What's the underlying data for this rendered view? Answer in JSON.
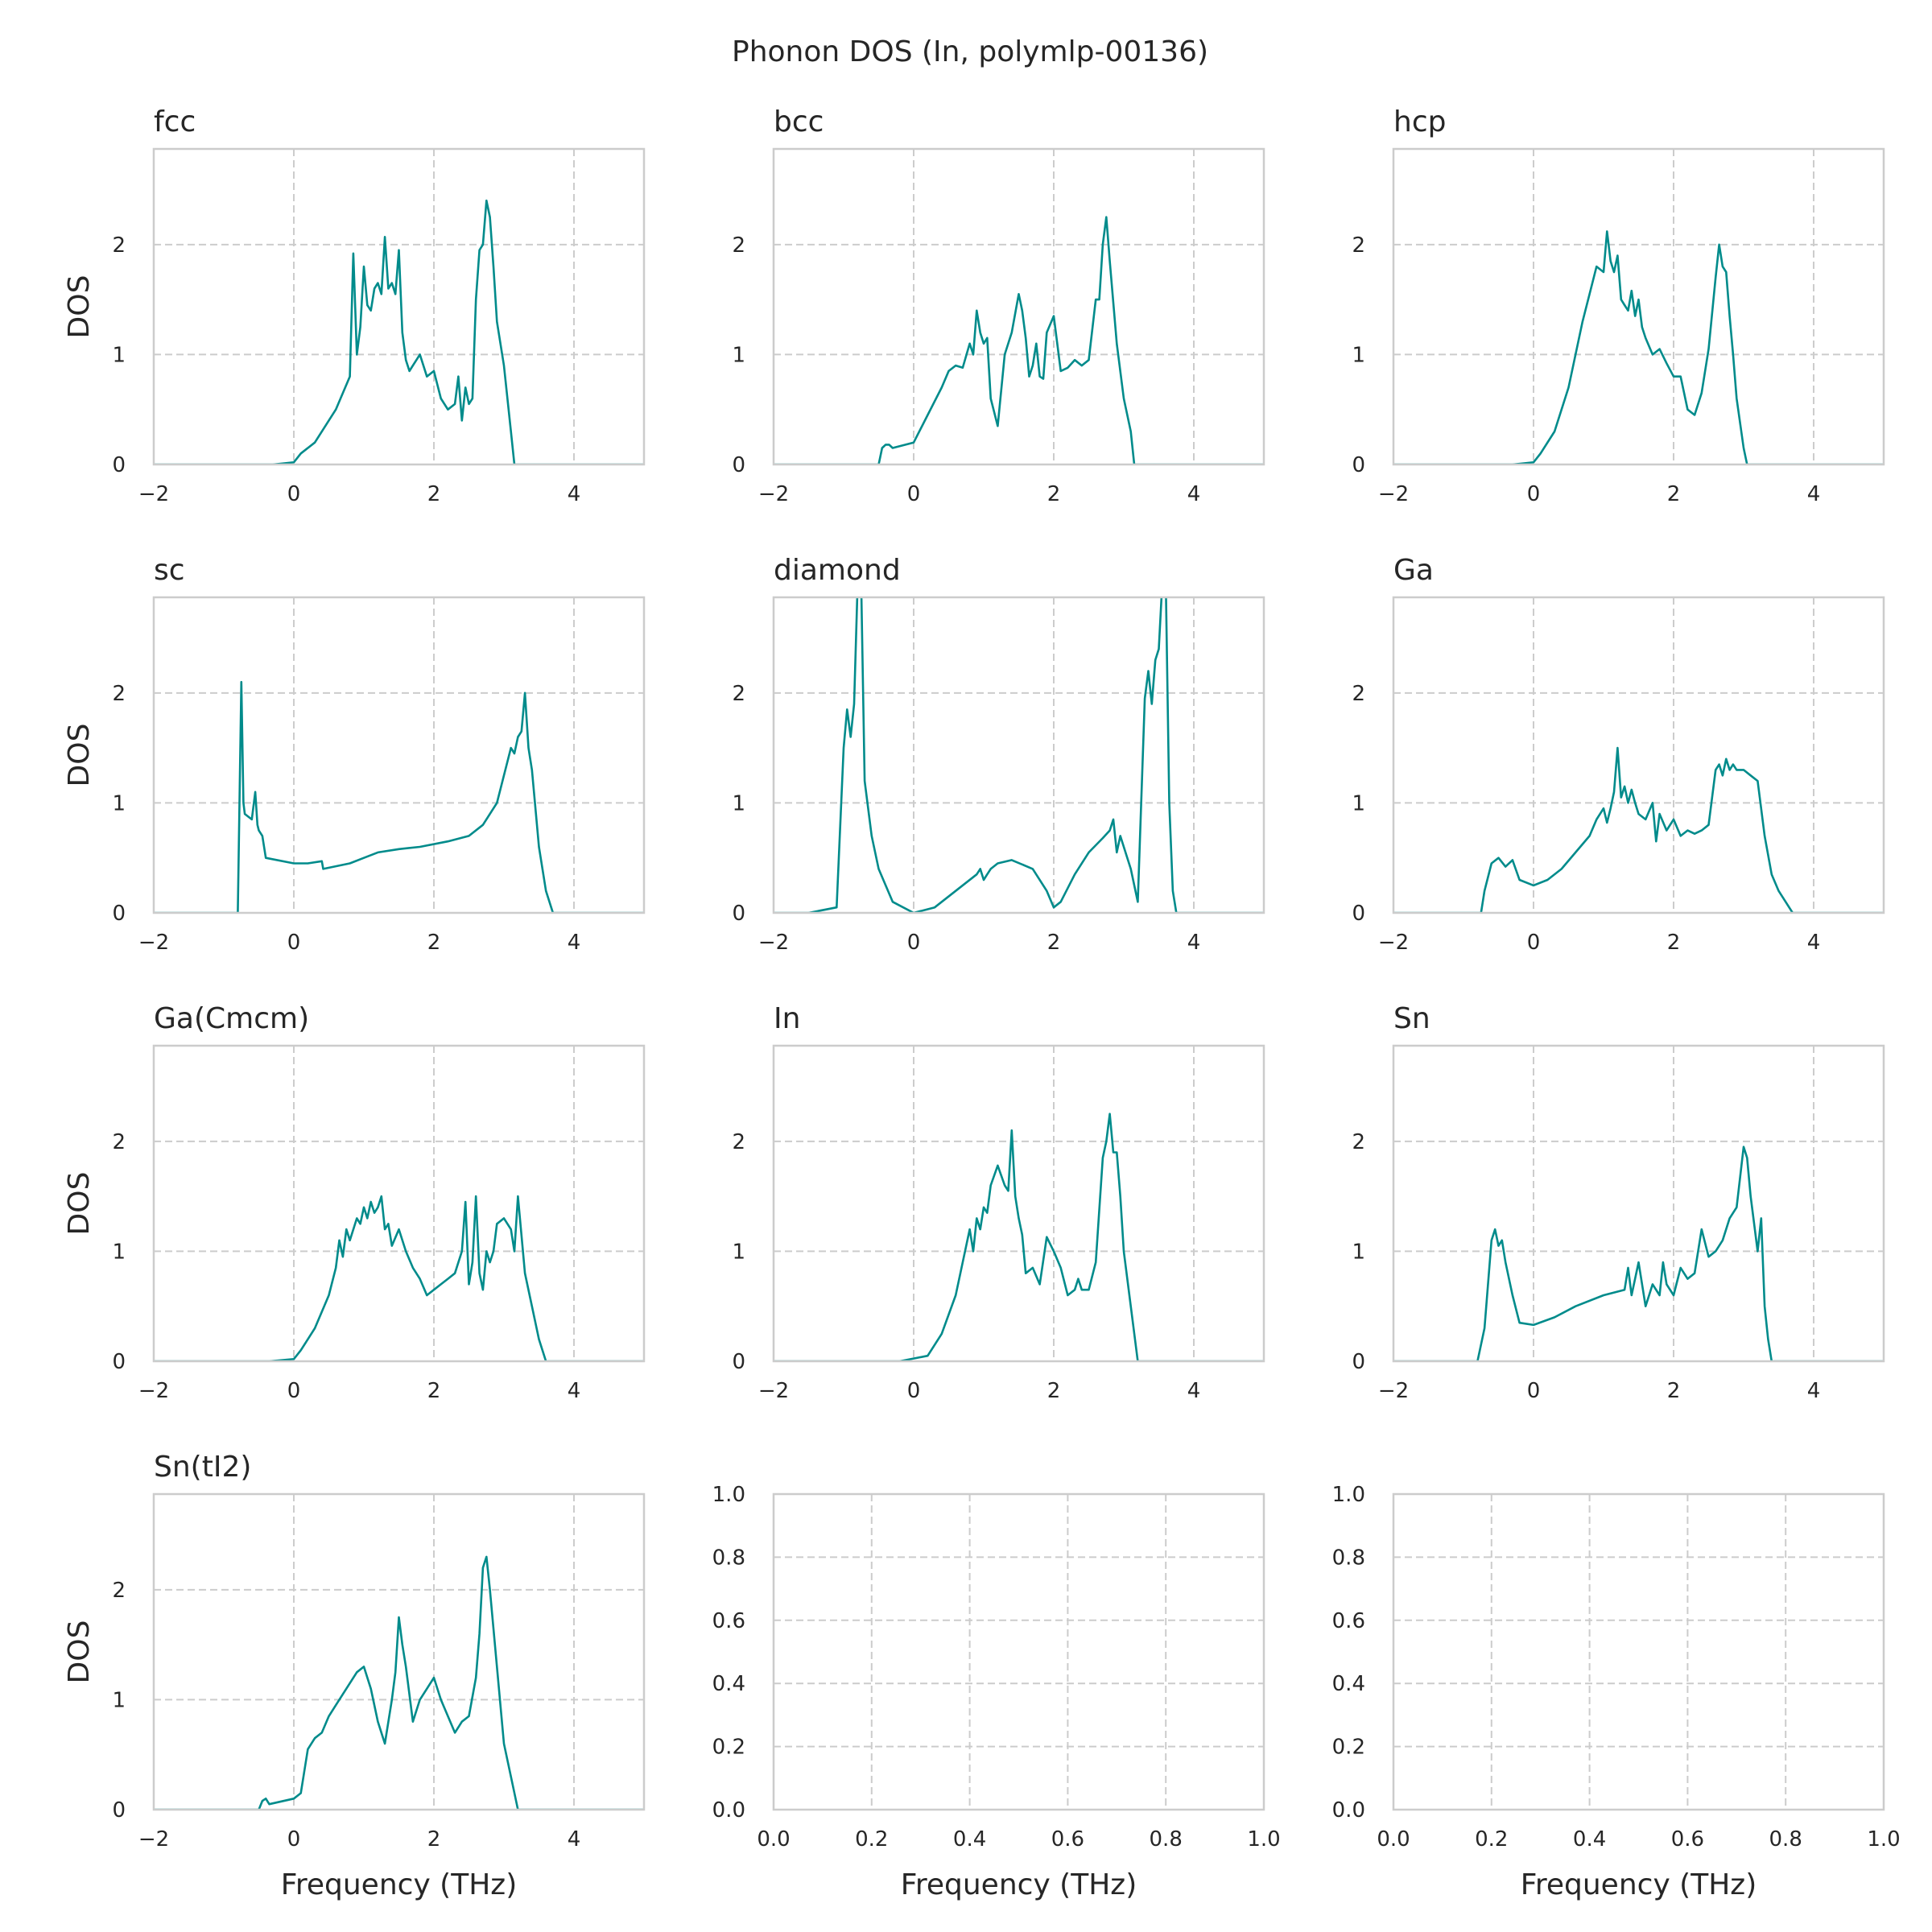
{
  "figure": {
    "suptitle": "Phonon DOS (In, polymlp-00136)",
    "ylabel": "DOS",
    "xlabel": "Frequency (THz)",
    "line_color": "#008b8b",
    "grid_color": "#cccccc"
  },
  "chart_data": [
    {
      "type": "line",
      "title": "fcc",
      "xlabel": "",
      "ylabel": "DOS",
      "xlim": [
        -2,
        5
      ],
      "ylim": [
        0,
        2.87
      ],
      "xticks": [
        "−2",
        "0",
        "2",
        "4"
      ],
      "yticks": [
        "0",
        "1",
        "2"
      ],
      "grid": true,
      "x": [
        -2,
        -0.3,
        0,
        0.1,
        0.3,
        0.6,
        0.8,
        0.85,
        0.9,
        0.95,
        1.0,
        1.05,
        1.1,
        1.15,
        1.2,
        1.25,
        1.3,
        1.35,
        1.4,
        1.45,
        1.5,
        1.55,
        1.6,
        1.65,
        1.7,
        1.8,
        1.9,
        2.0,
        2.1,
        2.2,
        2.3,
        2.35,
        2.4,
        2.45,
        2.5,
        2.55,
        2.6,
        2.65,
        2.7,
        2.75,
        2.8,
        2.85,
        2.9,
        3.0,
        3.1,
        3.15,
        3.2,
        3.5,
        5
      ],
      "y": [
        0,
        0,
        0.02,
        0.1,
        0.2,
        0.5,
        0.8,
        1.92,
        1.0,
        1.25,
        1.8,
        1.45,
        1.4,
        1.6,
        1.65,
        1.55,
        2.07,
        1.6,
        1.65,
        1.55,
        1.95,
        1.2,
        0.95,
        0.85,
        0.9,
        1.0,
        0.8,
        0.85,
        0.6,
        0.5,
        0.55,
        0.8,
        0.4,
        0.7,
        0.55,
        0.6,
        1.5,
        1.95,
        2.0,
        2.4,
        2.25,
        1.8,
        1.3,
        0.9,
        0.3,
        0,
        0,
        0,
        0
      ]
    },
    {
      "type": "line",
      "title": "bcc",
      "xlabel": "",
      "ylabel": "",
      "xlim": [
        -2,
        5
      ],
      "ylim": [
        0,
        2.87
      ],
      "xticks": [
        "−2",
        "0",
        "2",
        "4"
      ],
      "yticks": [
        "0",
        "1",
        "2"
      ],
      "grid": true,
      "x": [
        -2,
        -0.8,
        -0.5,
        -0.45,
        -0.4,
        -0.35,
        -0.3,
        0,
        0.2,
        0.4,
        0.5,
        0.6,
        0.7,
        0.8,
        0.85,
        0.9,
        0.95,
        1.0,
        1.05,
        1.1,
        1.2,
        1.3,
        1.4,
        1.5,
        1.55,
        1.6,
        1.65,
        1.7,
        1.75,
        1.8,
        1.85,
        1.9,
        2.0,
        2.1,
        2.2,
        2.3,
        2.4,
        2.5,
        2.6,
        2.65,
        2.7,
        2.75,
        2.8,
        2.9,
        3.0,
        3.1,
        3.15,
        3.5,
        5
      ],
      "y": [
        0,
        0,
        0,
        0.15,
        0.18,
        0.18,
        0.15,
        0.2,
        0.45,
        0.7,
        0.85,
        0.9,
        0.88,
        1.1,
        1.0,
        1.4,
        1.2,
        1.1,
        1.15,
        0.6,
        0.35,
        1.0,
        1.2,
        1.55,
        1.4,
        1.15,
        0.8,
        0.9,
        1.1,
        0.8,
        0.78,
        1.2,
        1.35,
        0.85,
        0.88,
        0.95,
        0.9,
        0.95,
        1.5,
        1.5,
        2.0,
        2.25,
        1.85,
        1.1,
        0.6,
        0.3,
        0,
        0,
        0
      ]
    },
    {
      "type": "line",
      "title": "hcp",
      "xlabel": "",
      "ylabel": "",
      "xlim": [
        -2,
        5
      ],
      "ylim": [
        0,
        2.87
      ],
      "xticks": [
        "−2",
        "0",
        "2",
        "4"
      ],
      "yticks": [
        "0",
        "1",
        "2"
      ],
      "grid": true,
      "x": [
        -2,
        -0.3,
        0,
        0.1,
        0.3,
        0.5,
        0.7,
        0.8,
        0.9,
        1.0,
        1.05,
        1.1,
        1.15,
        1.2,
        1.25,
        1.3,
        1.35,
        1.4,
        1.45,
        1.5,
        1.55,
        1.6,
        1.7,
        1.8,
        1.9,
        2.0,
        2.1,
        2.2,
        2.3,
        2.4,
        2.5,
        2.6,
        2.65,
        2.7,
        2.75,
        2.8,
        2.85,
        2.9,
        3.0,
        3.05,
        3.1,
        3.5,
        5
      ],
      "y": [
        0,
        0,
        0.02,
        0.1,
        0.3,
        0.7,
        1.3,
        1.55,
        1.8,
        1.75,
        2.12,
        1.85,
        1.75,
        1.9,
        1.5,
        1.45,
        1.4,
        1.58,
        1.35,
        1.5,
        1.25,
        1.15,
        1.0,
        1.05,
        0.92,
        0.8,
        0.8,
        0.5,
        0.45,
        0.65,
        1.05,
        1.7,
        2.0,
        1.8,
        1.75,
        1.35,
        1.0,
        0.6,
        0.15,
        0,
        0,
        0,
        0
      ]
    },
    {
      "type": "line",
      "title": "sc",
      "xlabel": "",
      "ylabel": "DOS",
      "xlim": [
        -2,
        5
      ],
      "ylim": [
        0,
        2.87
      ],
      "xticks": [
        "−2",
        "0",
        "2",
        "4"
      ],
      "yticks": [
        "0",
        "1",
        "2"
      ],
      "grid": true,
      "x": [
        -2,
        -1.2,
        -0.8,
        -0.75,
        -0.72,
        -0.7,
        -0.6,
        -0.55,
        -0.52,
        -0.5,
        -0.45,
        -0.4,
        0,
        0.2,
        0.4,
        0.42,
        0.8,
        1.0,
        1.2,
        1.5,
        1.8,
        2.2,
        2.5,
        2.7,
        2.9,
        3.1,
        3.15,
        3.2,
        3.25,
        3.3,
        3.35,
        3.4,
        3.5,
        3.6,
        3.7,
        4.2,
        5
      ],
      "y": [
        0,
        0,
        0,
        2.1,
        1.0,
        0.9,
        0.85,
        1.1,
        0.8,
        0.75,
        0.7,
        0.5,
        0.45,
        0.45,
        0.47,
        0.4,
        0.45,
        0.5,
        0.55,
        0.58,
        0.6,
        0.65,
        0.7,
        0.8,
        1.0,
        1.5,
        1.45,
        1.6,
        1.65,
        2.0,
        1.5,
        1.3,
        0.6,
        0.2,
        0,
        0,
        0
      ]
    },
    {
      "type": "line",
      "title": "diamond",
      "xlabel": "",
      "ylabel": "",
      "xlim": [
        -2,
        5
      ],
      "ylim": [
        0,
        2.87
      ],
      "xticks": [
        "−2",
        "0",
        "2",
        "4"
      ],
      "yticks": [
        "0",
        "1",
        "2"
      ],
      "grid": true,
      "x": [
        -2,
        -1.5,
        -1.1,
        -1.0,
        -0.95,
        -0.9,
        -0.85,
        -0.8,
        -0.75,
        -0.7,
        -0.6,
        -0.5,
        -0.3,
        0,
        0.3,
        0.6,
        0.9,
        0.95,
        1.0,
        1.05,
        1.1,
        1.2,
        1.4,
        1.7,
        1.9,
        2.0,
        2.1,
        2.3,
        2.5,
        2.7,
        2.8,
        2.85,
        2.9,
        2.95,
        3.0,
        3.1,
        3.2,
        3.3,
        3.35,
        3.4,
        3.45,
        3.5,
        3.55,
        3.6,
        3.65,
        3.7,
        3.75,
        4.3,
        5
      ],
      "y": [
        0,
        0,
        0.05,
        1.5,
        1.85,
        1.6,
        1.9,
        3.0,
        3.0,
        1.2,
        0.7,
        0.4,
        0.1,
        0,
        0.05,
        0.2,
        0.35,
        0.4,
        0.3,
        0.35,
        0.4,
        0.45,
        0.48,
        0.4,
        0.2,
        0.05,
        0.1,
        0.35,
        0.55,
        0.68,
        0.75,
        0.85,
        0.55,
        0.7,
        0.6,
        0.4,
        0.1,
        1.95,
        2.2,
        1.9,
        2.3,
        2.4,
        3.0,
        3.0,
        1.0,
        0.2,
        0,
        0,
        0
      ]
    },
    {
      "type": "line",
      "title": "Ga",
      "xlabel": "",
      "ylabel": "",
      "xlim": [
        -2,
        5
      ],
      "ylim": [
        0,
        2.87
      ],
      "xticks": [
        "−2",
        "0",
        "2",
        "4"
      ],
      "yticks": [
        "0",
        "1",
        "2"
      ],
      "grid": true,
      "x": [
        -2,
        -1.1,
        -0.75,
        -0.7,
        -0.6,
        -0.5,
        -0.4,
        -0.3,
        -0.2,
        0,
        0.2,
        0.4,
        0.6,
        0.8,
        0.9,
        1.0,
        1.05,
        1.1,
        1.15,
        1.2,
        1.25,
        1.3,
        1.35,
        1.4,
        1.45,
        1.5,
        1.6,
        1.7,
        1.75,
        1.8,
        1.9,
        2.0,
        2.1,
        2.2,
        2.3,
        2.4,
        2.5,
        2.6,
        2.65,
        2.7,
        2.75,
        2.8,
        2.85,
        2.9,
        3.0,
        3.1,
        3.2,
        3.3,
        3.4,
        3.5,
        3.6,
        3.7,
        4.0,
        5
      ],
      "y": [
        0,
        0,
        0,
        0.2,
        0.45,
        0.5,
        0.42,
        0.48,
        0.3,
        0.25,
        0.3,
        0.4,
        0.55,
        0.7,
        0.85,
        0.95,
        0.82,
        0.95,
        1.1,
        1.5,
        1.05,
        1.15,
        1.0,
        1.12,
        1.0,
        0.9,
        0.85,
        1.0,
        0.65,
        0.9,
        0.75,
        0.85,
        0.7,
        0.75,
        0.72,
        0.75,
        0.8,
        1.3,
        1.35,
        1.25,
        1.4,
        1.3,
        1.35,
        1.3,
        1.3,
        1.25,
        1.2,
        0.7,
        0.35,
        0.2,
        0.1,
        0,
        0,
        0
      ]
    },
    {
      "type": "line",
      "title": "Ga(Cmcm)",
      "xlabel": "",
      "ylabel": "DOS",
      "xlim": [
        -2,
        5
      ],
      "ylim": [
        0,
        2.87
      ],
      "xticks": [
        "−2",
        "0",
        "2",
        "4"
      ],
      "yticks": [
        "0",
        "1",
        "2"
      ],
      "grid": true,
      "x": [
        -2,
        -0.35,
        0,
        0.1,
        0.2,
        0.3,
        0.4,
        0.5,
        0.6,
        0.65,
        0.7,
        0.75,
        0.8,
        0.9,
        0.95,
        1.0,
        1.05,
        1.1,
        1.15,
        1.2,
        1.25,
        1.3,
        1.35,
        1.4,
        1.5,
        1.6,
        1.7,
        1.8,
        1.9,
        2.0,
        2.1,
        2.2,
        2.3,
        2.4,
        2.45,
        2.5,
        2.55,
        2.6,
        2.65,
        2.7,
        2.75,
        2.8,
        2.85,
        2.9,
        3.0,
        3.1,
        3.15,
        3.2,
        3.3,
        3.4,
        3.5,
        3.6,
        3.9,
        5
      ],
      "y": [
        0,
        0,
        0.02,
        0.1,
        0.2,
        0.3,
        0.45,
        0.6,
        0.85,
        1.1,
        0.95,
        1.2,
        1.1,
        1.3,
        1.25,
        1.4,
        1.3,
        1.45,
        1.35,
        1.4,
        1.5,
        1.2,
        1.25,
        1.05,
        1.2,
        1.0,
        0.85,
        0.75,
        0.6,
        0.65,
        0.7,
        0.75,
        0.8,
        1.0,
        1.45,
        0.7,
        0.9,
        1.5,
        0.8,
        0.65,
        1.0,
        0.9,
        1.0,
        1.25,
        1.3,
        1.2,
        1.0,
        1.5,
        0.8,
        0.5,
        0.2,
        0,
        0,
        0
      ]
    },
    {
      "type": "line",
      "title": "In",
      "xlabel": "",
      "ylabel": "",
      "xlim": [
        -2,
        5
      ],
      "ylim": [
        0,
        2.87
      ],
      "xticks": [
        "−2",
        "0",
        "2",
        "4"
      ],
      "yticks": [
        "0",
        "1",
        "2"
      ],
      "grid": true,
      "x": [
        -2,
        -0.2,
        0.2,
        0.4,
        0.6,
        0.8,
        0.85,
        0.9,
        0.95,
        1.0,
        1.05,
        1.1,
        1.2,
        1.3,
        1.35,
        1.4,
        1.45,
        1.5,
        1.55,
        1.6,
        1.7,
        1.8,
        1.9,
        2.0,
        2.1,
        2.2,
        2.3,
        2.35,
        2.4,
        2.5,
        2.6,
        2.7,
        2.75,
        2.8,
        2.85,
        2.9,
        2.95,
        3.0,
        3.1,
        3.2,
        3.5,
        5
      ],
      "y": [
        0,
        0,
        0.05,
        0.25,
        0.6,
        1.2,
        1.0,
        1.3,
        1.2,
        1.4,
        1.35,
        1.6,
        1.78,
        1.6,
        1.55,
        2.1,
        1.5,
        1.3,
        1.15,
        0.8,
        0.85,
        0.7,
        1.13,
        1.0,
        0.85,
        0.6,
        0.65,
        0.75,
        0.65,
        0.65,
        0.9,
        1.85,
        2.0,
        2.25,
        1.9,
        1.9,
        1.5,
        1.0,
        0.5,
        0,
        0,
        0
      ]
    },
    {
      "type": "line",
      "title": "Sn",
      "xlabel": "",
      "ylabel": "",
      "xlim": [
        -2,
        5
      ],
      "ylim": [
        0,
        2.87
      ],
      "xticks": [
        "−2",
        "0",
        "2",
        "4"
      ],
      "yticks": [
        "0",
        "1",
        "2"
      ],
      "grid": true,
      "x": [
        -2,
        -1.1,
        -0.8,
        -0.7,
        -0.6,
        -0.55,
        -0.5,
        -0.45,
        -0.4,
        -0.3,
        -0.2,
        0,
        0.3,
        0.6,
        1.0,
        1.3,
        1.35,
        1.4,
        1.5,
        1.6,
        1.65,
        1.7,
        1.8,
        1.85,
        1.9,
        2.0,
        2.1,
        2.2,
        2.3,
        2.4,
        2.5,
        2.6,
        2.7,
        2.8,
        2.9,
        3.0,
        3.05,
        3.1,
        3.2,
        3.25,
        3.3,
        3.35,
        3.4,
        3.5,
        3.8,
        5
      ],
      "y": [
        0,
        0,
        0,
        0.3,
        1.1,
        1.2,
        1.05,
        1.1,
        0.9,
        0.6,
        0.35,
        0.33,
        0.4,
        0.5,
        0.6,
        0.65,
        0.85,
        0.6,
        0.9,
        0.5,
        0.6,
        0.7,
        0.6,
        0.9,
        0.7,
        0.6,
        0.85,
        0.75,
        0.8,
        1.2,
        0.95,
        1.0,
        1.1,
        1.3,
        1.4,
        1.95,
        1.85,
        1.5,
        1.0,
        1.3,
        0.5,
        0.2,
        0,
        0,
        0,
        0
      ]
    },
    {
      "type": "line",
      "title": "Sn(tI2)",
      "xlabel": "Frequency (THz)",
      "ylabel": "DOS",
      "xlim": [
        -2,
        5
      ],
      "ylim": [
        0,
        2.87
      ],
      "xticks": [
        "−2",
        "0",
        "2",
        "4"
      ],
      "yticks": [
        "0",
        "1",
        "2"
      ],
      "grid": true,
      "x": [
        -2,
        -0.9,
        -0.5,
        -0.45,
        -0.4,
        -0.35,
        0,
        0.1,
        0.2,
        0.3,
        0.4,
        0.5,
        0.6,
        0.7,
        0.8,
        0.9,
        1.0,
        1.1,
        1.2,
        1.3,
        1.4,
        1.45,
        1.5,
        1.55,
        1.6,
        1.7,
        1.8,
        1.9,
        2.0,
        2.1,
        2.2,
        2.3,
        2.4,
        2.5,
        2.6,
        2.65,
        2.7,
        2.75,
        2.8,
        2.9,
        3.0,
        3.2,
        3.5,
        5
      ],
      "y": [
        0,
        0,
        0,
        0.08,
        0.1,
        0.05,
        0.1,
        0.15,
        0.55,
        0.65,
        0.7,
        0.85,
        0.95,
        1.05,
        1.15,
        1.25,
        1.3,
        1.1,
        0.8,
        0.6,
        1.0,
        1.25,
        1.75,
        1.5,
        1.3,
        0.8,
        1.0,
        1.1,
        1.2,
        1.0,
        0.85,
        0.7,
        0.8,
        0.85,
        1.2,
        1.6,
        2.2,
        2.3,
        2.0,
        1.3,
        0.6,
        0,
        0,
        0
      ]
    },
    {
      "type": "line",
      "title": "",
      "xlabel": "Frequency (THz)",
      "ylabel": "",
      "xlim": [
        0,
        1
      ],
      "ylim": [
        0,
        1
      ],
      "xticks": [
        "0.0",
        "0.2",
        "0.4",
        "0.6",
        "0.8",
        "1.0"
      ],
      "yticks": [
        "0.0",
        "0.2",
        "0.4",
        "0.6",
        "0.8",
        "1.0"
      ],
      "grid": true,
      "x": [],
      "y": []
    },
    {
      "type": "line",
      "title": "",
      "xlabel": "Frequency (THz)",
      "ylabel": "",
      "xlim": [
        0,
        1
      ],
      "ylim": [
        0,
        1
      ],
      "xticks": [
        "0.0",
        "0.2",
        "0.4",
        "0.6",
        "0.8",
        "1.0"
      ],
      "yticks": [
        "0.0",
        "0.2",
        "0.4",
        "0.6",
        "0.8",
        "1.0"
      ],
      "grid": true,
      "x": [],
      "y": []
    }
  ]
}
